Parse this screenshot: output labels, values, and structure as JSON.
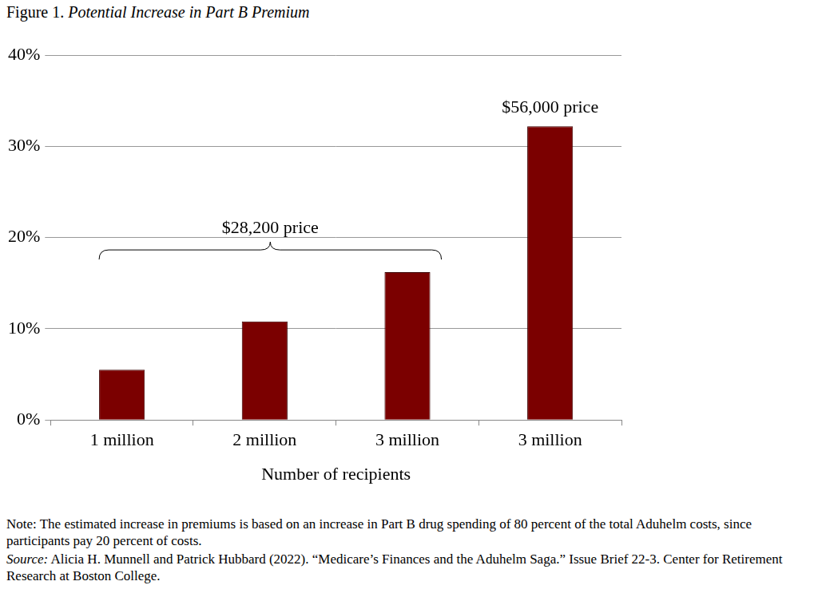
{
  "chart_data": {
    "type": "bar",
    "title": "Figure 1. Potential Increase in Part B Premium",
    "categories": [
      "1 million",
      "2 million",
      "3 million",
      "3 million"
    ],
    "values": [
      5.5,
      10.8,
      16.2,
      32.2
    ],
    "color": "#7b0000",
    "x_label": "Number of recipients",
    "ylim": [
      0,
      40
    ],
    "yticks": [
      {
        "value": 0,
        "label": "0%"
      },
      {
        "value": 10,
        "label": "10%"
      },
      {
        "value": 20,
        "label": "20%"
      },
      {
        "value": 30,
        "label": "30%"
      },
      {
        "value": 40,
        "label": "40%"
      }
    ],
    "grid": true,
    "annotations": [
      "$28,200 price",
      "$56,000 price"
    ],
    "note": "Note: The estimated increase in premiums is based on an increase in Part B drug spending of 80 percent of the total Aduhelm costs, since participants pay 20 percent of costs.",
    "source": "Source: Alicia H. Munnell and Patrick Hubbard (2022). “Medicare’s Finances and the Aduhelm Saga.” Issue Brief 22-3. Center for Retirement Research at Boston College."
  }
}
